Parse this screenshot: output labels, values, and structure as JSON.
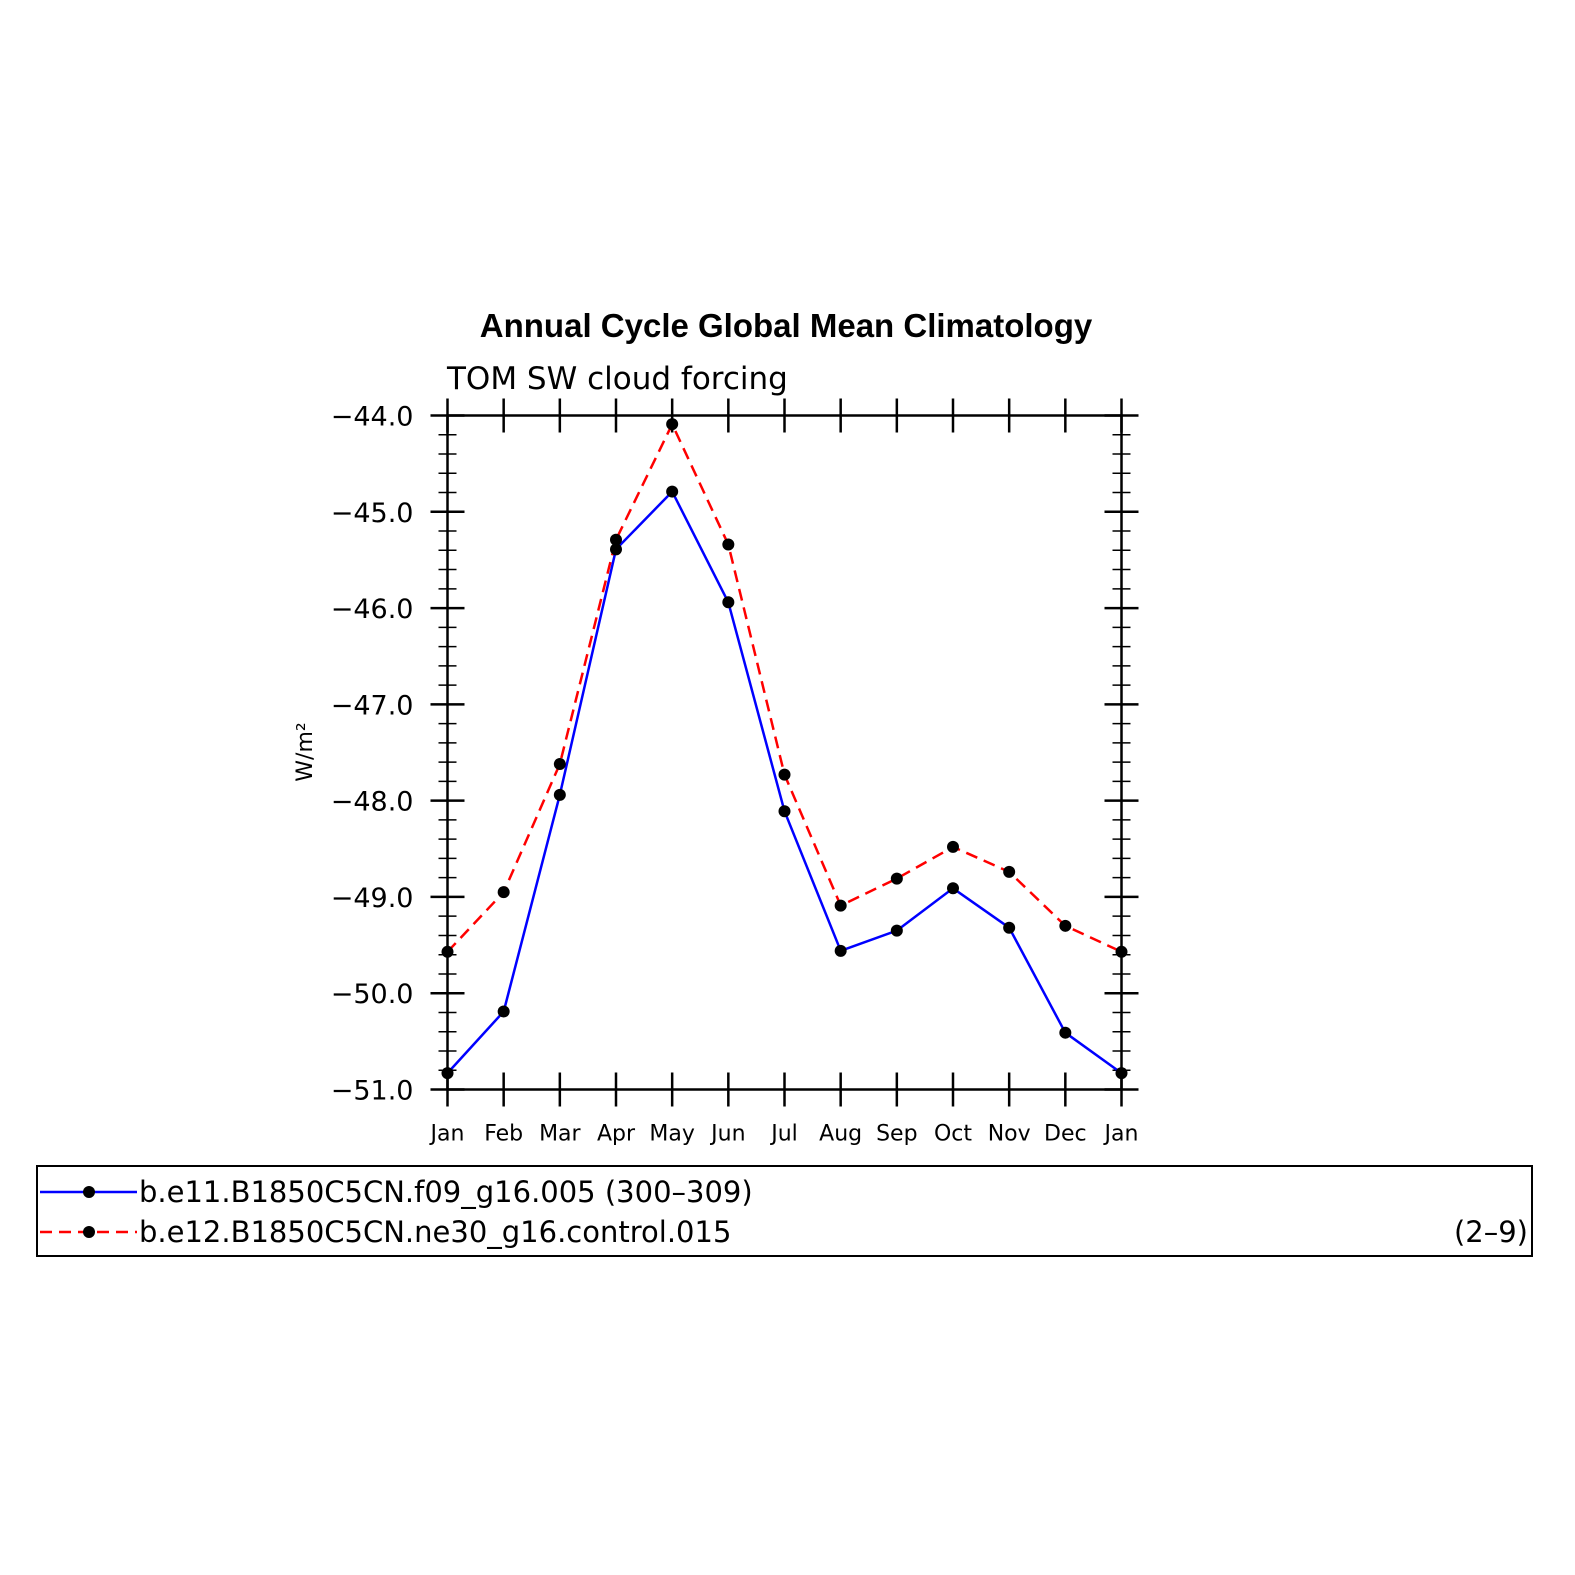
{
  "chart_data": {
    "type": "line",
    "title": "Annual Cycle Global Mean Climatology",
    "subtitle": "TOM SW cloud forcing",
    "ylabel": "W/m²",
    "xlabel": "",
    "categories": [
      "Jan",
      "Feb",
      "Mar",
      "Apr",
      "May",
      "Jun",
      "Jul",
      "Aug",
      "Sep",
      "Oct",
      "Nov",
      "Dec",
      "Jan"
    ],
    "ylim": [
      -51.0,
      -44.0
    ],
    "yticks": [
      "-44.0",
      "-45.0",
      "-46.0",
      "-47.0",
      "-48.0",
      "-49.0",
      "-50.0",
      "-51.0"
    ],
    "grid": false,
    "series": [
      {
        "name": "b.e11.B1850C5CN.f09_g16.005 (300–309)",
        "years": "(300–309)",
        "color": "#0000ff",
        "line_style": "solid",
        "values": [
          -50.83,
          -50.19,
          -47.94,
          -45.39,
          -44.79,
          -45.94,
          -48.11,
          -49.56,
          -49.35,
          -48.91,
          -49.32,
          -50.41,
          -50.83
        ]
      },
      {
        "name": "b.e12.B1850C5CN.ne30_g16.control.015",
        "years": "(2–9)",
        "color": "#ff0000",
        "line_style": "dashed",
        "values": [
          -49.57,
          -48.95,
          -47.62,
          -45.29,
          -44.09,
          -45.34,
          -47.73,
          -49.09,
          -48.81,
          -48.48,
          -48.74,
          -49.3,
          -49.57
        ]
      }
    ],
    "legend_placement": "bottom"
  }
}
